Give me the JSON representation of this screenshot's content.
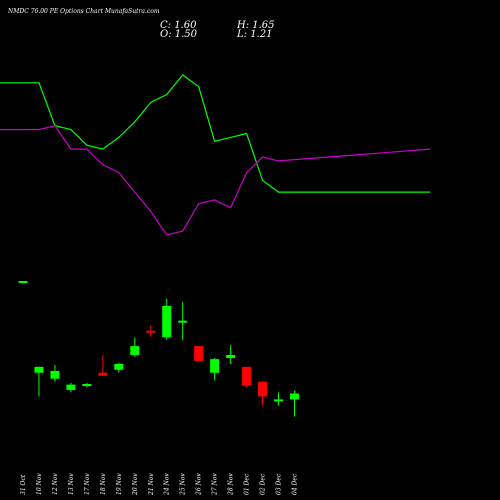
{
  "header": {
    "title": "NMDC 76.00 PE Options Chart MunafaSutra.com",
    "c_label": "C: 1.60",
    "o_label": "O: 1.50",
    "h_label": "H: 1.65",
    "l_label": "L: 1.21"
  },
  "chart_data": {
    "type": "candlestick",
    "title": "NMDC 76.00 PE Options Chart MunafaSutra.com",
    "xlabel": "",
    "ylabel": "",
    "categories": [
      "31 Oct",
      "10 Nov",
      "12 Nov",
      "13 Nov",
      "17 Nov",
      "18 Nov",
      "19 Nov",
      "20 Nov",
      "21 Nov",
      "24 Nov",
      "25 Nov",
      "26 Nov",
      "27 Nov",
      "28 Nov",
      "01 Dec",
      "02 Dec",
      "03 Dec",
      "04 Dec"
    ],
    "candles": [
      {
        "open": 3.5,
        "high": 3.5,
        "low": 3.5,
        "close": 3.5,
        "color": "#00ff00"
      },
      {
        "open": 1.95,
        "high": 2.05,
        "low": 1.55,
        "close": 2.05,
        "color": "#00ff00"
      },
      {
        "open": 1.85,
        "high": 2.08,
        "low": 1.8,
        "close": 1.98,
        "color": "#00ff00"
      },
      {
        "open": 1.66,
        "high": 1.78,
        "low": 1.62,
        "close": 1.75,
        "color": "#00ff00"
      },
      {
        "open": 1.75,
        "high": 1.78,
        "low": 1.7,
        "close": 1.76,
        "color": "#00ff00"
      },
      {
        "open": 1.95,
        "high": 2.25,
        "low": 1.92,
        "close": 1.9,
        "color": "#ff0000"
      },
      {
        "open": 2.0,
        "high": 2.12,
        "low": 1.95,
        "close": 2.1,
        "color": "#00ff00"
      },
      {
        "open": 2.25,
        "high": 2.55,
        "low": 2.22,
        "close": 2.4,
        "color": "#00ff00"
      },
      {
        "open": 2.66,
        "high": 2.75,
        "low": 2.55,
        "close": 2.64,
        "color": "#ff0000"
      },
      {
        "open": 2.55,
        "high": 3.2,
        "low": 2.5,
        "close": 3.08,
        "color": "#00ff00"
      },
      {
        "open": 2.8,
        "high": 3.15,
        "low": 2.5,
        "close": 2.83,
        "color": "#00ff00"
      },
      {
        "open": 2.4,
        "high": 2.4,
        "low": 2.15,
        "close": 2.15,
        "color": "#ff0000"
      },
      {
        "open": 1.95,
        "high": 2.2,
        "low": 1.82,
        "close": 2.18,
        "color": "#00ff00"
      },
      {
        "open": 2.25,
        "high": 2.42,
        "low": 2.1,
        "close": 2.2,
        "color": "#00ff00"
      },
      {
        "open": 2.05,
        "high": 2.05,
        "low": 1.7,
        "close": 1.73,
        "color": "#ff0000"
      },
      {
        "open": 1.8,
        "high": 1.8,
        "low": 1.4,
        "close": 1.55,
        "color": "#ff0000"
      },
      {
        "open": 1.48,
        "high": 1.62,
        "low": 1.4,
        "close": 1.5,
        "color": "#00ff00"
      },
      {
        "open": 1.5,
        "high": 1.65,
        "low": 1.21,
        "close": 1.6,
        "color": "#00ff00"
      }
    ],
    "series": [
      {
        "values": [
          10.0,
          10.0,
          8.9,
          8.8,
          8.4,
          8.3,
          8.6,
          9.0,
          9.5,
          9.7,
          10.2,
          9.9,
          8.5,
          8.6,
          8.7,
          7.5,
          7.2,
          7.2
        ],
        "color": "#00ff00"
      },
      {
        "values": [
          8.8,
          8.8,
          8.9,
          8.3,
          8.3,
          7.9,
          7.7,
          7.2,
          6.7,
          6.1,
          6.2,
          6.9,
          7.0,
          6.8,
          7.7,
          8.1,
          8.0,
          8.3
        ],
        "color": "#cc00cc"
      }
    ],
    "grid": false,
    "background": "#000000"
  }
}
